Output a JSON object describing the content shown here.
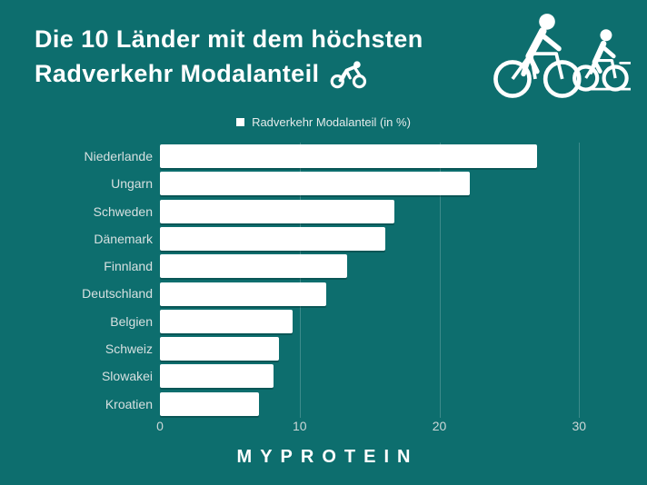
{
  "title": {
    "line1": "Die 10 Länder mit dem höchsten",
    "line2": "Radverkehr Modalanteil"
  },
  "footer": {
    "brand": "MYPROTEIN"
  },
  "icons": {
    "title_icon": "cyclist-icon",
    "hero_icon": "two-cyclists-icon",
    "legend_swatch": "white-square"
  },
  "colors": {
    "background": "#0d6e6e",
    "bar": "#ffffff",
    "title_text": "#ffffff",
    "category_label": "#d6e0e0",
    "tick_label": "#ccd7d7",
    "gridline": "rgba(255,255,255,0.20)"
  },
  "chart_data": {
    "type": "bar",
    "orientation": "horizontal",
    "title": "Die 10 Länder mit dem höchsten Radverkehr Modalanteil",
    "legend_label": "Radverkehr Modalanteil (in %)",
    "legend_position": "top-center",
    "categories": [
      "Niederlande",
      "Ungarn",
      "Schweden",
      "Dänemark",
      "Finnland",
      "Deutschland",
      "Belgien",
      "Schweiz",
      "Slowakei",
      "Kroatien"
    ],
    "values": [
      27,
      22.2,
      16.8,
      16.1,
      13.4,
      11.9,
      9.5,
      8.5,
      8.1,
      7.1
    ],
    "xlabel": "",
    "ylabel": "",
    "xticks": [
      0,
      10,
      20,
      30
    ],
    "xlim": [
      0,
      32
    ],
    "grid": "vertical",
    "bar_color": "#ffffff"
  }
}
